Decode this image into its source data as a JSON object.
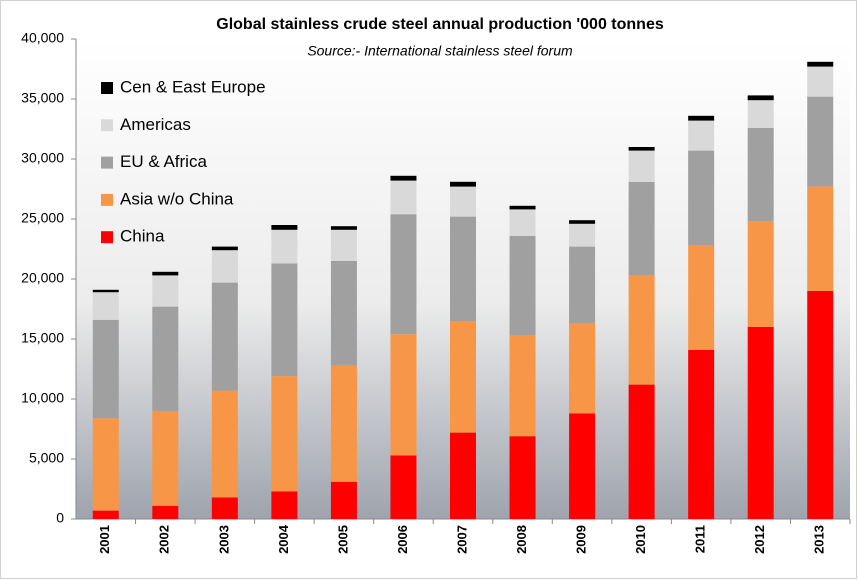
{
  "chart_data": {
    "type": "stacked_bar",
    "title": "Global stainless crude steel annual production '000 tonnes",
    "subtitle": "Source:- International stainless steel forum",
    "categories": [
      "2001",
      "2002",
      "2003",
      "2004",
      "2005",
      "2006",
      "2007",
      "2008",
      "2009",
      "2010",
      "2011",
      "2012",
      "2013"
    ],
    "series": [
      {
        "name": "China",
        "color": "#ff0000",
        "values": [
          700,
          1100,
          1800,
          2300,
          3100,
          5300,
          7200,
          6900,
          8800,
          11200,
          14100,
          16000,
          19000
        ]
      },
      {
        "name": "Asia w/o China",
        "color": "#f79646",
        "values": [
          7700,
          7900,
          8900,
          9600,
          9700,
          10100,
          9300,
          8400,
          7500,
          9100,
          8700,
          8800,
          8700
        ]
      },
      {
        "name": "EU & Africa",
        "color": "#a0a0a0",
        "values": [
          8200,
          8700,
          9000,
          9400,
          8700,
          10000,
          8700,
          8300,
          6400,
          7800,
          7900,
          7800,
          7500
        ]
      },
      {
        "name": "Americas",
        "color": "#d9d9d9",
        "values": [
          2300,
          2600,
          2700,
          2800,
          2600,
          2800,
          2500,
          2200,
          1900,
          2600,
          2500,
          2300,
          2500
        ]
      },
      {
        "name": "Cen & East Europe",
        "color": "#000000",
        "values": [
          200,
          300,
          300,
          400,
          300,
          400,
          400,
          300,
          300,
          300,
          400,
          400,
          400
        ]
      }
    ],
    "ylim": [
      0,
      40000
    ],
    "yticks": [
      0,
      {
        "value": 5000,
        "label": "5,000"
      },
      {
        "value": 10000,
        "label": "10,000"
      },
      {
        "value": 15000,
        "label": "15,000"
      },
      {
        "value": 20000,
        "label": "20,000"
      },
      {
        "value": 25000,
        "label": "25,000"
      },
      {
        "value": 30000,
        "label": "30,000"
      },
      {
        "value": 35000,
        "label": "35,000"
      },
      {
        "value": 40000,
        "label": "40,000"
      }
    ],
    "legend": "upper-left"
  }
}
